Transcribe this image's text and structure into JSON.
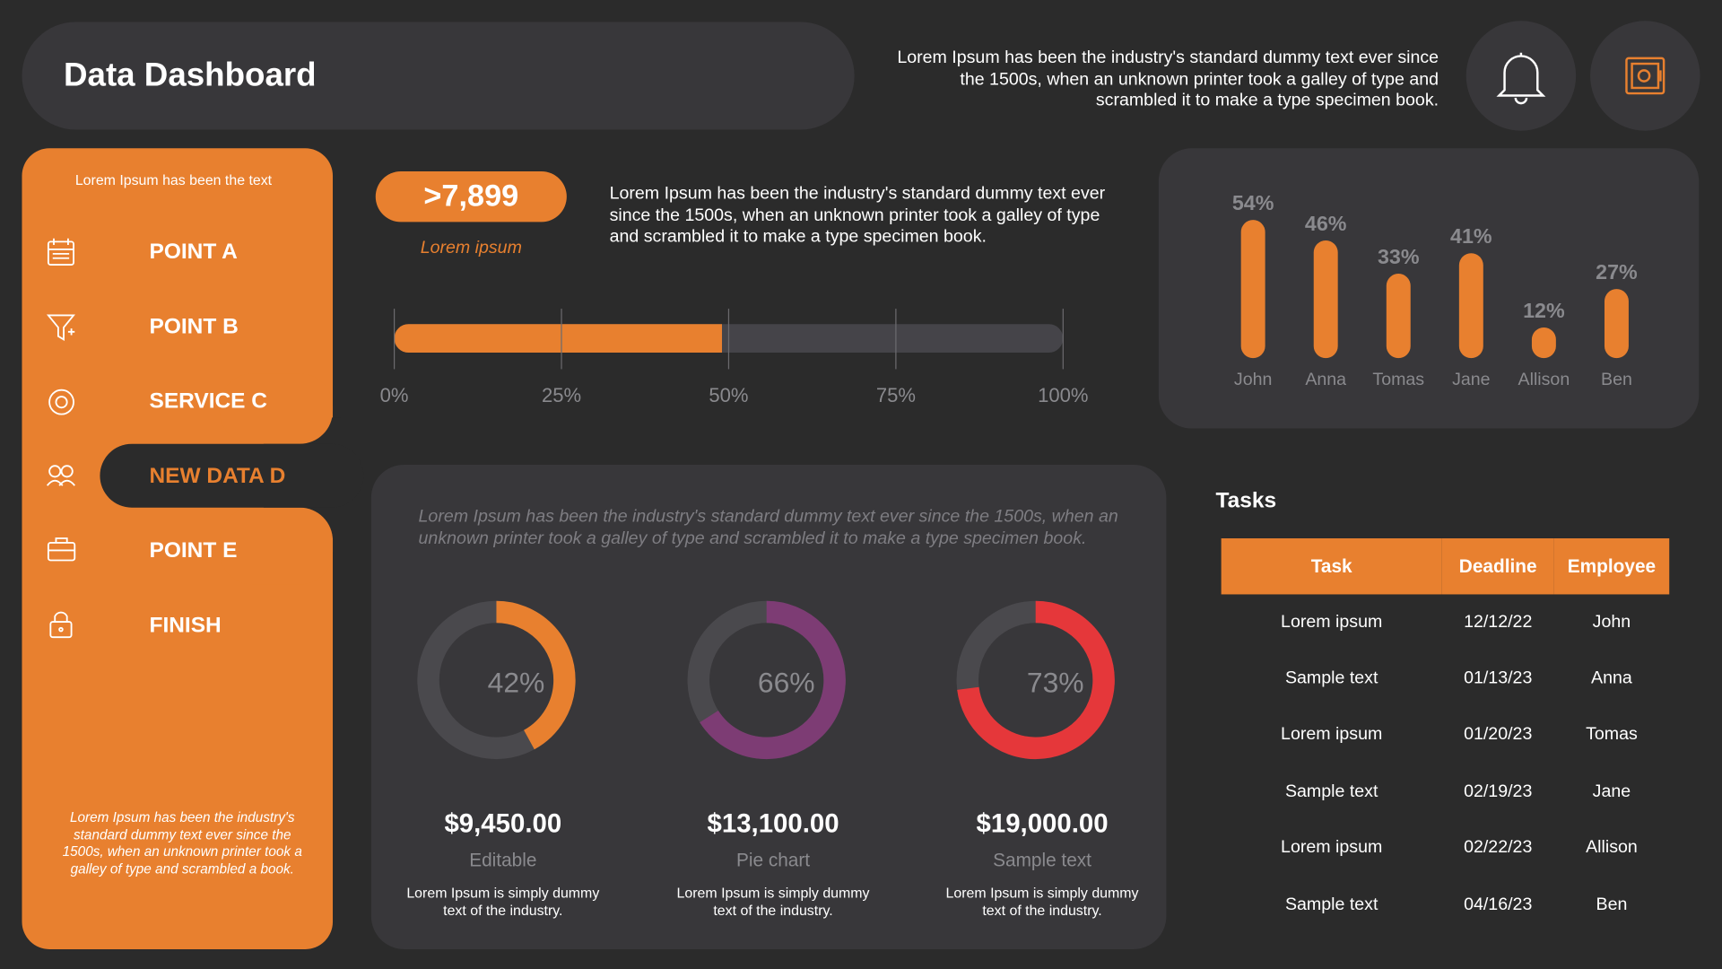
{
  "header": {
    "title": "Data Dashboard",
    "text": "Lorem Ipsum has been the industry's standard dummy text ever since the 1500s, when an unknown printer took a galley of type and scrambled it to make a type specimen book."
  },
  "sidebar": {
    "caption": "Lorem Ipsum has been the text",
    "items": [
      "POINT A",
      "POINT B",
      "SERVICE C",
      "NEW DATA D",
      "POINT E",
      "FINISH"
    ],
    "active": 3,
    "footer": "Lorem Ipsum has been the industry's standard dummy text ever since the 1500s, when an unknown printer took a galley of type and scrambled  a book."
  },
  "kpi": {
    "value": ">7,899",
    "label": "Lorem ipsum",
    "text": "Lorem Ipsum has been the industry's standard dummy text ever since the 1500s, when an unknown printer took a galley of type and scrambled it to make a type specimen book."
  },
  "donut_panel": {
    "text": "Lorem Ipsum has been the industry's standard dummy text ever since the 1500s, when an unknown printer took a galley of type and scrambled it to make a type specimen book."
  },
  "chart_data": [
    {
      "type": "progress",
      "values": [
        49
      ],
      "color": "#e8802f",
      "xlim": [
        0,
        100
      ],
      "xticks": [
        {
          "value": 0,
          "label": "0%"
        },
        {
          "value": 25,
          "label": "25%"
        },
        {
          "value": 50,
          "label": "50%"
        },
        {
          "value": 75,
          "label": "75%"
        },
        {
          "value": 100,
          "label": "100%"
        }
      ]
    },
    {
      "type": "bar",
      "categories": [
        "John",
        "Anna",
        "Tomas",
        "Jane",
        "Allison",
        "Ben"
      ],
      "values": [
        54,
        46,
        33,
        41,
        12,
        27
      ],
      "value_labels": [
        "54%",
        "46%",
        "33%",
        "41%",
        "12%",
        "27%"
      ],
      "color": "#e8802f",
      "ylim": [
        0,
        100
      ]
    },
    {
      "type": "donut",
      "title": "$9,450.00",
      "subtitle": "Editable",
      "caption": "Lorem Ipsum is simply dummy text of the industry.",
      "values": [
        42
      ],
      "value_labels": [
        "42%"
      ],
      "color": "#e8802f",
      "ylim": [
        0,
        100
      ]
    },
    {
      "type": "donut",
      "title": "$13,100.00",
      "subtitle": "Pie chart",
      "caption": "Lorem Ipsum is simply dummy text of the industry.",
      "values": [
        66
      ],
      "value_labels": [
        "66%"
      ],
      "color": "#7d3c74",
      "ylim": [
        0,
        100
      ]
    },
    {
      "type": "donut",
      "title": "$19,000.00",
      "subtitle": "Sample text",
      "caption": "Lorem Ipsum is simply dummy text of the industry.",
      "values": [
        73
      ],
      "value_labels": [
        "73%"
      ],
      "color": "#e5373a",
      "ylim": [
        0,
        100
      ]
    }
  ],
  "tasks": {
    "title": "Tasks",
    "columns": [
      "Task",
      "Deadline",
      "Employee"
    ],
    "rows": [
      [
        "Lorem ipsum",
        "12/12/22",
        "John"
      ],
      [
        "Sample text",
        "01/13/23",
        "Anna"
      ],
      [
        "Lorem ipsum",
        "01/20/23",
        "Tomas"
      ],
      [
        "Sample text",
        "02/19/23",
        "Jane"
      ],
      [
        "Lorem ipsum",
        "02/22/23",
        "Allison"
      ],
      [
        "Sample text",
        "04/16/23",
        "Ben"
      ]
    ]
  }
}
